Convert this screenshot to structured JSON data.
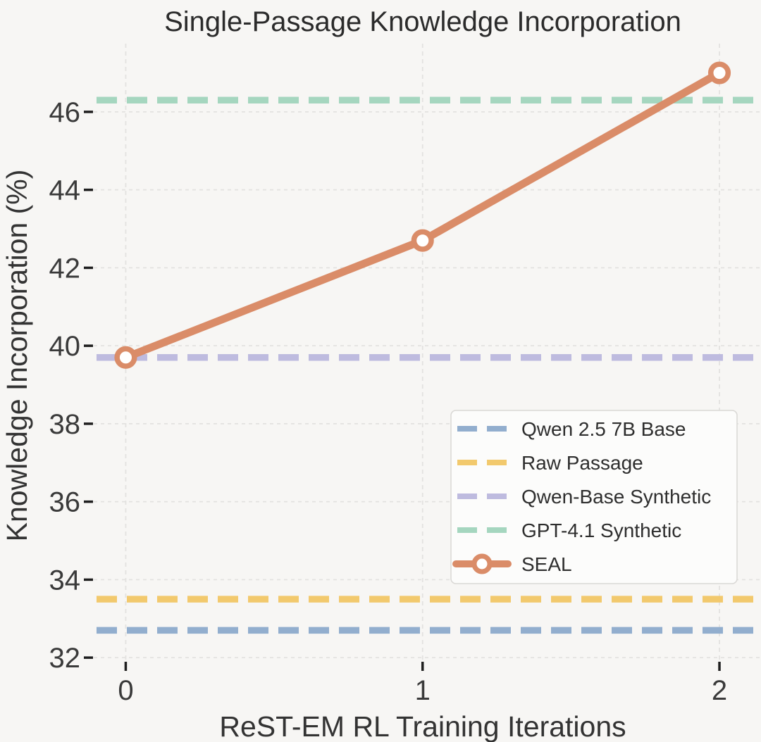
{
  "chart_data": {
    "type": "line",
    "title": "Single-Passage Knowledge Incorporation",
    "xlabel": "ReST-EM RL Training Iterations",
    "ylabel": "Knowledge Incorporation (%)",
    "x": [
      0,
      1,
      2
    ],
    "x_tick_labels": [
      "0",
      "1",
      "2"
    ],
    "y_ticks": [
      32,
      34,
      36,
      38,
      40,
      42,
      44,
      46
    ],
    "y_tick_labels": [
      "32",
      "34",
      "36",
      "38",
      "40",
      "42",
      "44",
      "46"
    ],
    "xlim": [
      -0.115,
      2.14
    ],
    "ylim": [
      31.75,
      47.75
    ],
    "grid": true,
    "series": [
      {
        "name": "SEAL",
        "style": "solid",
        "marker": "open-circle",
        "color": "#DA8C68",
        "values": [
          39.7,
          42.7,
          47.0
        ]
      }
    ],
    "baselines": [
      {
        "name": "Qwen 2.5 7B Base",
        "value": 32.7,
        "style": "dashed",
        "color": "#92AECE"
      },
      {
        "name": "Raw Passage",
        "value": 33.5,
        "style": "dashed",
        "color": "#F2C96D"
      },
      {
        "name": "Qwen-Base Synthetic",
        "value": 39.7,
        "style": "dashed",
        "color": "#BEBBDF"
      },
      {
        "name": "GPT-4.1 Synthetic",
        "value": 46.3,
        "style": "dashed",
        "color": "#A5D6BF"
      }
    ],
    "legend": {
      "position": "center-right",
      "entries": [
        "Qwen 2.5 7B Base",
        "Raw Passage",
        "Qwen-Base Synthetic",
        "GPT-4.1 Synthetic",
        "SEAL"
      ]
    }
  },
  "colors": {
    "background": "#F7F6F4",
    "grid": "#E3E2E0",
    "tick": "#1F1F1F",
    "title_text": "#2B2B2B",
    "axis_label_text": "#333333",
    "tick_label_text": "#3A3A3A",
    "legend_bg": "#FCFCFB",
    "legend_border": "#D9D8D5",
    "legend_text": "#2E2E2E",
    "marker_fill": "#FFFFFF"
  }
}
